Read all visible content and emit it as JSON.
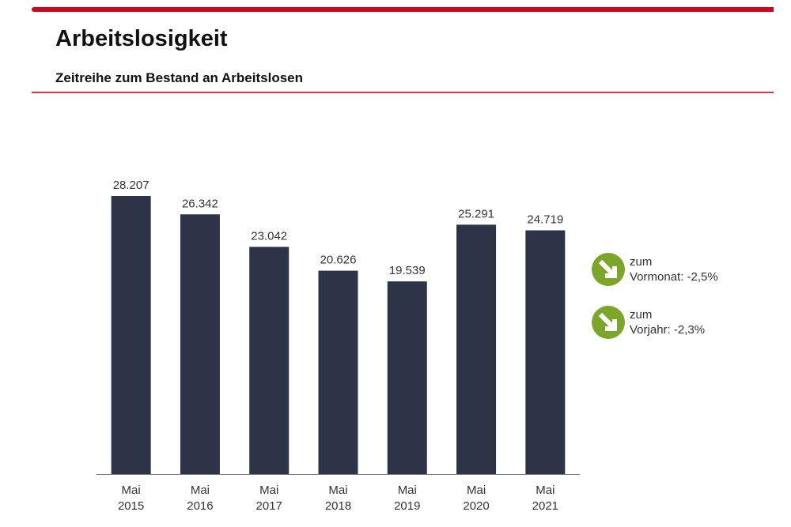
{
  "header": {
    "title": "Arbeitslosigkeit",
    "subtitle": "Zeitreihe zum Bestand an Arbeitslosen"
  },
  "colors": {
    "accent": "#d9001b",
    "bar": "#2e3448",
    "indicator": "#7ca62a"
  },
  "chart_data": {
    "type": "bar",
    "categories": [
      [
        "Mai",
        "2015"
      ],
      [
        "Mai",
        "2016"
      ],
      [
        "Mai",
        "2017"
      ],
      [
        "Mai",
        "2018"
      ],
      [
        "Mai",
        "2019"
      ],
      [
        "Mai",
        "2020"
      ],
      [
        "Mai",
        "2021"
      ]
    ],
    "values": [
      28207,
      26342,
      23042,
      20626,
      19539,
      25291,
      24719
    ],
    "value_labels": [
      "28.207",
      "26.342",
      "23.042",
      "20.626",
      "19.539",
      "25.291",
      "24.719"
    ],
    "ylim": [
      0,
      28207
    ],
    "grid": false
  },
  "indicators": [
    {
      "icon": "arrow-down-right-icon",
      "line1": "zum",
      "line2": "Vormonat: -2,5%"
    },
    {
      "icon": "arrow-down-right-icon",
      "line1": "zum",
      "line2": "Vorjahr: -2,3%"
    }
  ]
}
